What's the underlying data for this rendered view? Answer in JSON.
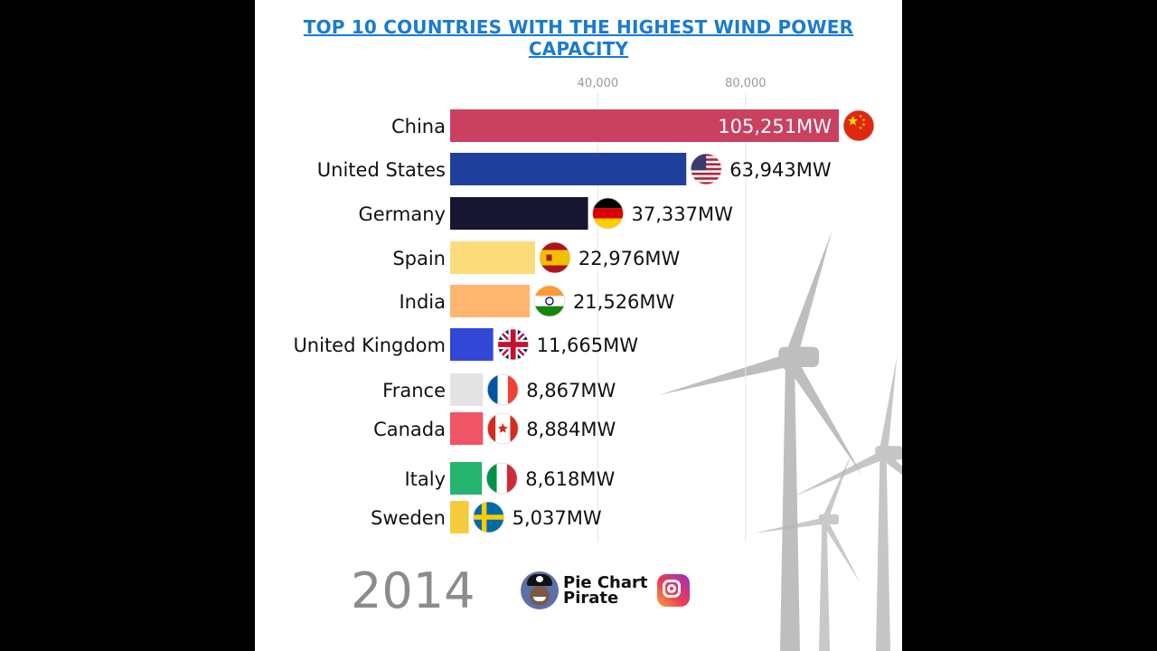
{
  "chart_data": {
    "type": "bar",
    "orientation": "horizontal",
    "title": "TOP 10 COUNTRIES WITH THE HIGHEST WIND POWER CAPACITY",
    "year": "2014",
    "unit_suffix": "MW",
    "ticks": [
      40000,
      80000
    ],
    "tick_labels": [
      "40,000",
      "80,000"
    ],
    "xlim": [
      0,
      105251
    ],
    "grid": true,
    "categories": [
      "China",
      "United States",
      "Germany",
      "Spain",
      "India",
      "United Kingdom",
      "France",
      "Canada",
      "Italy",
      "Sweden"
    ],
    "values": [
      105251,
      63943,
      37337,
      22976,
      21526,
      11665,
      8867,
      8884,
      8618,
      5037
    ],
    "value_labels": [
      "105,251MW",
      "63,943MW",
      "37,337MW",
      "22,976MW",
      "21,526MW",
      "11,665MW",
      "8,867MW",
      "8,884MW",
      "8,618MW",
      "5,037MW"
    ],
    "colors": [
      "#c9415f",
      "#1f3f9c",
      "#161631",
      "#fcdc7a",
      "#fdb56f",
      "#3347d6",
      "#e3e3e3",
      "#f05566",
      "#26b36e",
      "#f6cc3f"
    ],
    "flags": [
      "china-flag",
      "usa-flag",
      "germany-flag",
      "spain-flag",
      "india-flag",
      "uk-flag",
      "france-flag",
      "canada-flag",
      "italy-flag",
      "sweden-flag"
    ]
  },
  "brand": {
    "line1": "Pie Chart",
    "line2": "Pirate",
    "avatar_icon": "pirate-avatar-icon",
    "social_icon": "instagram-icon"
  }
}
